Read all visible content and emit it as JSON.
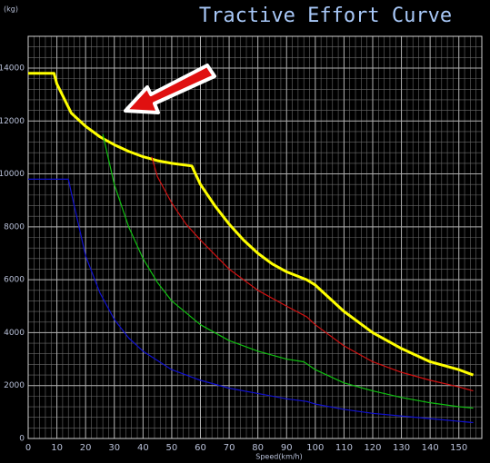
{
  "chart_data": {
    "type": "line",
    "title": "Tractive Effort Curve",
    "y_label": "(kg)",
    "x_label": "Speed(km/h)",
    "xlim": [
      0,
      158
    ],
    "ylim": [
      0,
      15200
    ],
    "xticks": [
      0,
      10,
      20,
      30,
      40,
      50,
      60,
      70,
      80,
      90,
      100,
      110,
      120,
      130,
      140,
      150
    ],
    "yticks": [
      0,
      2000,
      4000,
      6000,
      8000,
      10000,
      12000,
      14000
    ],
    "grid": true,
    "series": [
      {
        "color": "#ffff00",
        "x": [
          0,
          9,
          10,
          15,
          20,
          25,
          30,
          35,
          40,
          45,
          50,
          57,
          60,
          65,
          70,
          75,
          80,
          85,
          90,
          97,
          100,
          110,
          120,
          130,
          140,
          150,
          155
        ],
        "values": [
          13800,
          13800,
          13400,
          12300,
          11800,
          11400,
          11100,
          10850,
          10650,
          10500,
          10400,
          10300,
          9600,
          8800,
          8100,
          7500,
          7000,
          6600,
          6300,
          6000,
          5800,
          4800,
          4000,
          3400,
          2900,
          2600,
          2400
        ]
      },
      {
        "color": "#d01010",
        "x": [
          43,
          45,
          50,
          55,
          60,
          70,
          80,
          90,
          97,
          100,
          110,
          120,
          130,
          140,
          150,
          155
        ],
        "values": [
          10650,
          9900,
          8900,
          8100,
          7500,
          6400,
          5600,
          5000,
          4600,
          4300,
          3500,
          2900,
          2500,
          2200,
          1950,
          1800
        ]
      },
      {
        "color": "#10c010",
        "x": [
          26,
          30,
          35,
          40,
          45,
          50,
          60,
          70,
          80,
          90,
          96,
          100,
          110,
          120,
          130,
          140,
          150,
          155
        ],
        "values": [
          11500,
          9600,
          8000,
          6800,
          5900,
          5200,
          4300,
          3700,
          3300,
          3000,
          2900,
          2600,
          2100,
          1800,
          1550,
          1350,
          1200,
          1150
        ]
      },
      {
        "color": "#1010d0",
        "x": [
          0,
          14,
          15,
          20,
          25,
          30,
          35,
          40,
          50,
          60,
          70,
          80,
          90,
          97,
          100,
          110,
          120,
          130,
          140,
          150,
          155
        ],
        "values": [
          9800,
          9800,
          9300,
          6900,
          5500,
          4500,
          3800,
          3300,
          2600,
          2200,
          1900,
          1700,
          1500,
          1400,
          1300,
          1100,
          950,
          850,
          750,
          650,
          600
        ]
      }
    ]
  }
}
